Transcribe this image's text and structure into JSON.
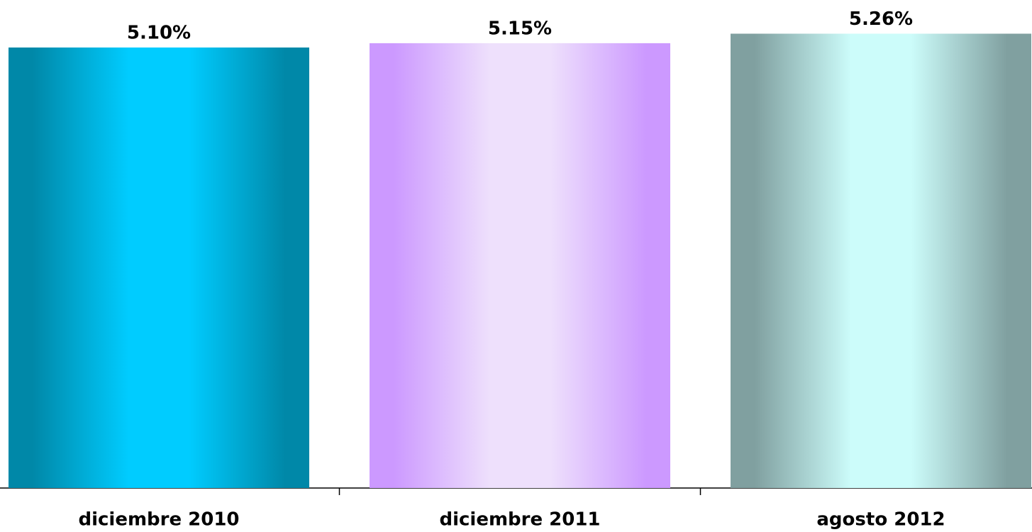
{
  "chart_data": {
    "type": "bar",
    "categories": [
      "diciembre 2010",
      "diciembre 2011",
      "agosto 2012"
    ],
    "values": [
      5.1,
      5.15,
      5.26
    ],
    "value_labels": [
      "5.10%",
      "5.15%",
      "5.26%"
    ],
    "colors": [
      "#00ccff",
      "#eee0fc",
      "#ccfcfa"
    ],
    "edge_colors": [
      "#0088a8",
      "#cc99ff",
      "#80a0a0"
    ],
    "ylim": [
      0,
      5.65
    ]
  }
}
